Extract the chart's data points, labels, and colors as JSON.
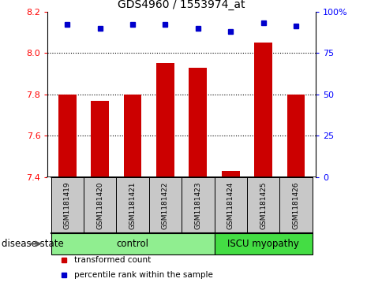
{
  "title": "GDS4960 / 1553974_at",
  "samples": [
    "GSM1181419",
    "GSM1181420",
    "GSM1181421",
    "GSM1181422",
    "GSM1181423",
    "GSM1181424",
    "GSM1181425",
    "GSM1181426"
  ],
  "bar_values": [
    7.8,
    7.77,
    7.8,
    7.95,
    7.93,
    7.43,
    8.05,
    7.8
  ],
  "percentile_values": [
    92,
    90,
    92,
    92,
    90,
    88,
    93,
    91
  ],
  "ylim_left": [
    7.4,
    8.2
  ],
  "ylim_right": [
    0,
    100
  ],
  "yticks_left": [
    7.4,
    7.6,
    7.8,
    8.0,
    8.2
  ],
  "yticks_right": [
    0,
    25,
    50,
    75,
    100
  ],
  "bar_color": "#CC0000",
  "dot_color": "#0000CC",
  "bar_width": 0.55,
  "control_samples": 5,
  "control_label": "control",
  "disease_label": "ISCU myopathy",
  "control_bg": "#90EE90",
  "disease_bg": "#44DD44",
  "sample_bg": "#C8C8C8",
  "legend_bar_label": "transformed count",
  "legend_dot_label": "percentile rank within the sample",
  "disease_state_label": "disease state",
  "title_fontsize": 10,
  "tick_fontsize": 8,
  "hgrid_ticks": [
    7.6,
    7.8,
    8.0
  ],
  "fig_width": 4.65,
  "fig_height": 3.63,
  "fig_dpi": 100
}
